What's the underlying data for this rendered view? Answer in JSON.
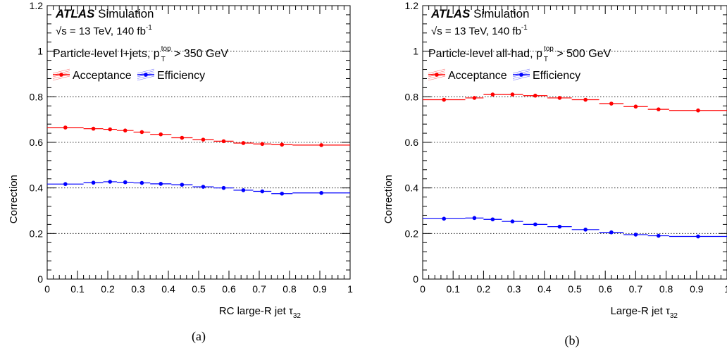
{
  "chart_data": [
    {
      "type": "scatter",
      "panel_label": "(a)",
      "xlabel": "RC large-R jet τ",
      "xlabel_sub": "32",
      "ylabel": "Correction",
      "xlim": [
        0,
        1
      ],
      "ylim": [
        0,
        1.2
      ],
      "xticks": [
        "0",
        "0.1",
        "0.2",
        "0.3",
        "0.4",
        "0.5",
        "0.6",
        "0.7",
        "0.8",
        "0.9",
        "1"
      ],
      "yticks": [
        "0",
        "0.2",
        "0.4",
        "0.6",
        "0.8",
        "1",
        "1.2"
      ],
      "grid": "horizontal dotted",
      "legend_position": "top-left",
      "annotations": {
        "atlas": "ATLAS",
        "simulation": "Simulation",
        "energy": "√s = 13 TeV, 140 fb",
        "energy_sup": "-1",
        "selection_prefix": "Particle-level l+jets, p",
        "selection_sup": "top",
        "selection_sub": "T",
        "selection_suffix": " > 350 GeV"
      },
      "bins": [
        0,
        0.12,
        0.185,
        0.23,
        0.285,
        0.34,
        0.41,
        0.48,
        0.55,
        0.615,
        0.68,
        0.74,
        0.81,
        1.0
      ],
      "series": [
        {
          "name": "Acceptance",
          "color": "#ff0000",
          "values": [
            0.665,
            0.66,
            0.657,
            0.652,
            0.645,
            0.635,
            0.62,
            0.612,
            0.605,
            0.597,
            0.593,
            0.59,
            0.588
          ]
        },
        {
          "name": "Efficiency",
          "color": "#0000ff",
          "values": [
            0.417,
            0.423,
            0.427,
            0.425,
            0.422,
            0.418,
            0.414,
            0.405,
            0.4,
            0.39,
            0.385,
            0.375,
            0.378
          ]
        }
      ]
    },
    {
      "type": "scatter",
      "panel_label": "(b)",
      "xlabel": "Large-R jet τ",
      "xlabel_sub": "32",
      "ylabel": "Correction",
      "xlim": [
        0,
        1
      ],
      "ylim": [
        0,
        1.2
      ],
      "xticks": [
        "0",
        "0.1",
        "0.2",
        "0.3",
        "0.4",
        "0.5",
        "0.6",
        "0.7",
        "0.8",
        "0.9",
        "1"
      ],
      "yticks": [
        "0",
        "0.2",
        "0.4",
        "0.6",
        "0.8",
        "1",
        "1.2"
      ],
      "grid": "horizontal dotted",
      "legend_position": "top-left",
      "annotations": {
        "atlas": "ATLAS",
        "simulation": "Simulation",
        "energy": "√s = 13 TeV, 140 fb",
        "energy_sup": "-1",
        "selection_prefix": "Particle-level all-had, p",
        "selection_sup": "top",
        "selection_sub": "T",
        "selection_suffix": " > 500 GeV"
      },
      "bins": [
        0,
        0.14,
        0.2,
        0.26,
        0.33,
        0.41,
        0.49,
        0.58,
        0.66,
        0.74,
        0.81,
        1.0
      ],
      "series": [
        {
          "name": "Acceptance",
          "color": "#ff0000",
          "values": [
            0.787,
            0.795,
            0.81,
            0.81,
            0.805,
            0.795,
            0.787,
            0.77,
            0.757,
            0.745,
            0.74
          ]
        },
        {
          "name": "Efficiency",
          "color": "#0000ff",
          "values": [
            0.265,
            0.268,
            0.262,
            0.253,
            0.24,
            0.23,
            0.217,
            0.205,
            0.195,
            0.19,
            0.187
          ]
        }
      ]
    }
  ]
}
